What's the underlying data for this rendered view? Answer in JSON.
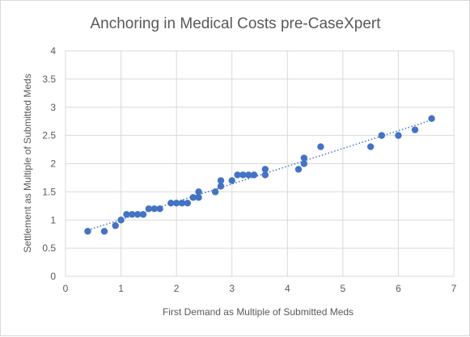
{
  "chart_data": {
    "type": "scatter",
    "title": "Anchoring in Medical Costs pre-CaseXpert",
    "xlabel": "First Demand as Multiple of Submitted Meds",
    "ylabel": "Settlement  as Multiple of Submitted Meds",
    "xlim": [
      0,
      7
    ],
    "ylim": [
      0,
      4
    ],
    "x_ticks": [
      "0",
      "1",
      "2",
      "3",
      "4",
      "5",
      "6",
      "7"
    ],
    "y_ticks": [
      "0",
      "0.5",
      "1",
      "1.5",
      "2",
      "2.5",
      "3",
      "3.5",
      "4"
    ],
    "grid": true,
    "trendline": "linear",
    "marker_color": "#4472c4",
    "points": [
      {
        "x": 0.4,
        "y": 0.8
      },
      {
        "x": 0.7,
        "y": 0.8
      },
      {
        "x": 0.9,
        "y": 0.9
      },
      {
        "x": 1.0,
        "y": 1.0
      },
      {
        "x": 1.1,
        "y": 1.1
      },
      {
        "x": 1.2,
        "y": 1.1
      },
      {
        "x": 1.3,
        "y": 1.1
      },
      {
        "x": 1.4,
        "y": 1.1
      },
      {
        "x": 1.5,
        "y": 1.2
      },
      {
        "x": 1.6,
        "y": 1.2
      },
      {
        "x": 1.7,
        "y": 1.2
      },
      {
        "x": 1.9,
        "y": 1.3
      },
      {
        "x": 2.0,
        "y": 1.3
      },
      {
        "x": 2.1,
        "y": 1.3
      },
      {
        "x": 2.2,
        "y": 1.3
      },
      {
        "x": 2.3,
        "y": 1.4
      },
      {
        "x": 2.4,
        "y": 1.4
      },
      {
        "x": 2.4,
        "y": 1.5
      },
      {
        "x": 2.7,
        "y": 1.5
      },
      {
        "x": 2.8,
        "y": 1.6
      },
      {
        "x": 2.8,
        "y": 1.7
      },
      {
        "x": 3.0,
        "y": 1.7
      },
      {
        "x": 3.1,
        "y": 1.8
      },
      {
        "x": 3.2,
        "y": 1.8
      },
      {
        "x": 3.3,
        "y": 1.8
      },
      {
        "x": 3.4,
        "y": 1.8
      },
      {
        "x": 3.6,
        "y": 1.8
      },
      {
        "x": 3.6,
        "y": 1.9
      },
      {
        "x": 4.2,
        "y": 1.9
      },
      {
        "x": 4.3,
        "y": 2.0
      },
      {
        "x": 4.3,
        "y": 2.1
      },
      {
        "x": 4.6,
        "y": 2.3
      },
      {
        "x": 5.5,
        "y": 2.3
      },
      {
        "x": 5.7,
        "y": 2.5
      },
      {
        "x": 6.0,
        "y": 2.5
      },
      {
        "x": 6.3,
        "y": 2.6
      },
      {
        "x": 6.6,
        "y": 2.8
      }
    ]
  }
}
